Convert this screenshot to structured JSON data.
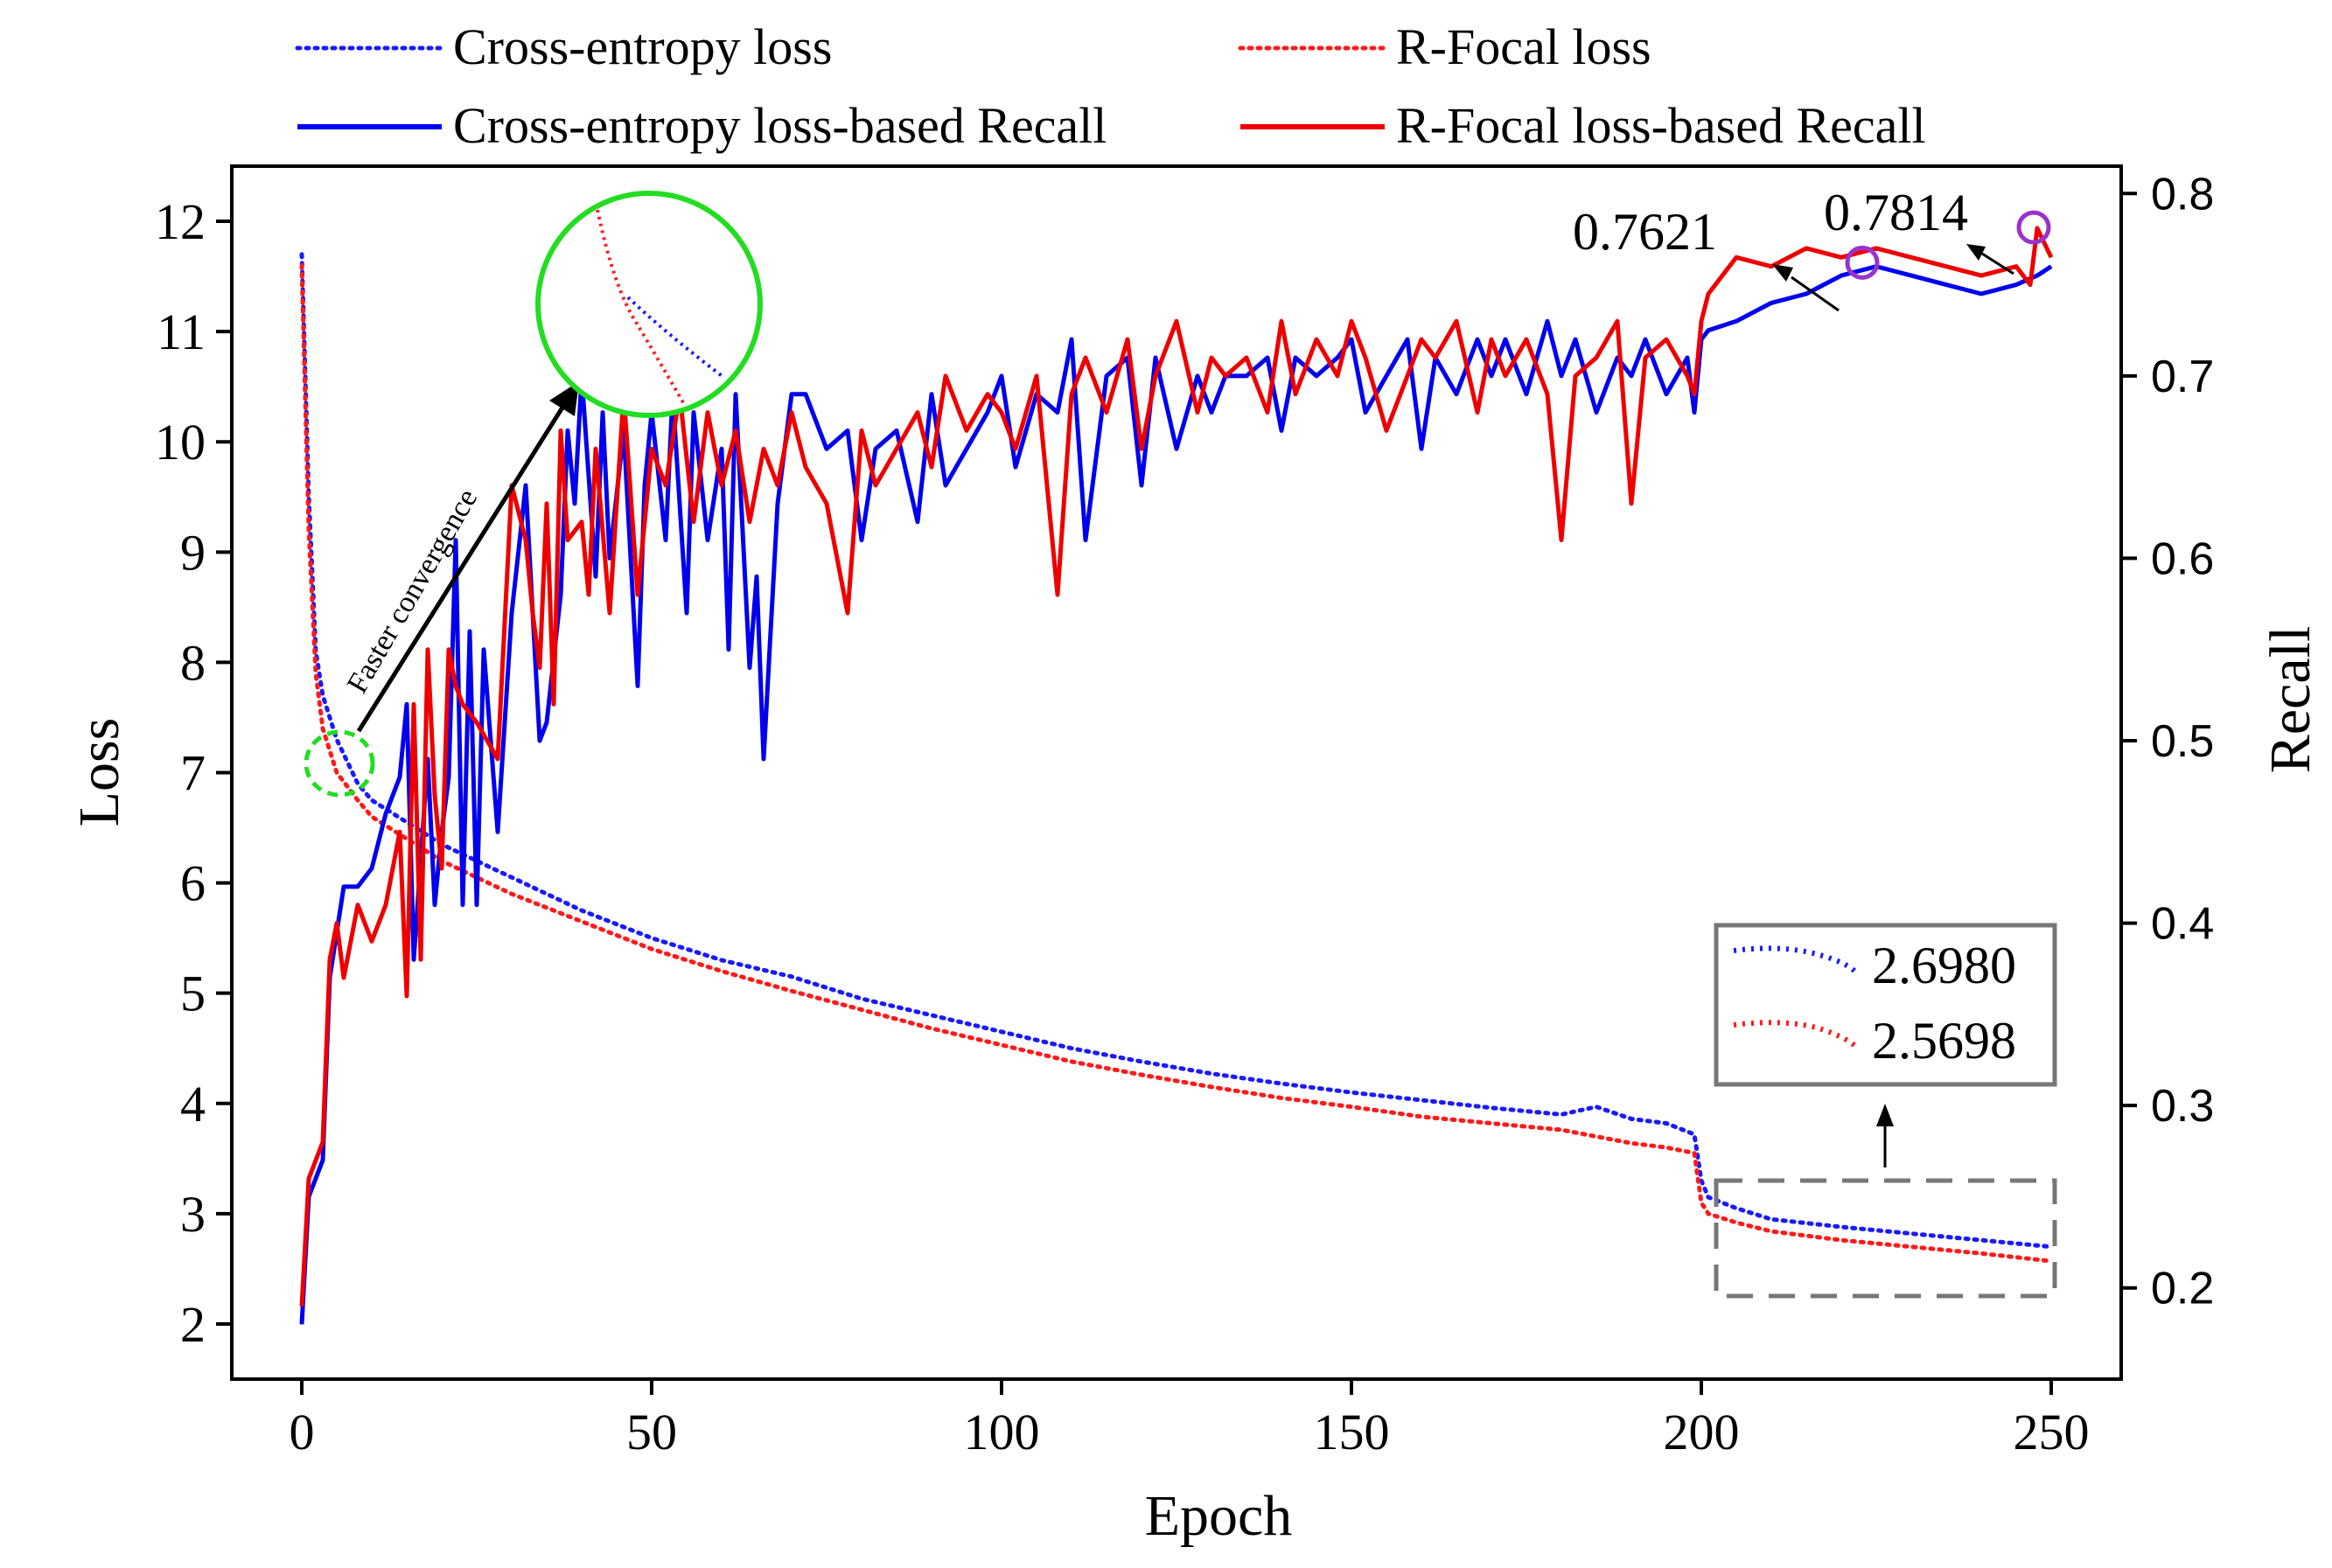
{
  "chart_data": {
    "type": "line",
    "title": "",
    "xlabel": "Epoch",
    "ylabel_left": "Loss",
    "ylabel_right": "Recall",
    "xlim": [
      -10,
      260
    ],
    "ylim_left": [
      1.5,
      12.5
    ],
    "ylim_right": [
      0.15,
      0.815
    ],
    "xticks": [
      0,
      50,
      100,
      150,
      200,
      250
    ],
    "yticks_left": [
      2,
      3,
      4,
      5,
      6,
      7,
      8,
      9,
      10,
      11,
      12
    ],
    "yticks_right": [
      0.2,
      0.3,
      0.4,
      0.5,
      0.6,
      0.7,
      0.8
    ],
    "xtick_labels": [
      "0",
      "50",
      "100",
      "150",
      "200",
      "250"
    ],
    "ytick_labels_left": [
      "2",
      "3",
      "4",
      "5",
      "6",
      "7",
      "8",
      "9",
      "10",
      "11",
      "12"
    ],
    "ytick_labels_right": [
      "0.2",
      "0.3",
      "0.4",
      "0.5",
      "0.6",
      "0.7",
      "0.8"
    ],
    "series": [
      {
        "name": "Cross-entropy loss",
        "axis": "left",
        "style": "dotted",
        "color": "#1a1aff",
        "x": [
          0,
          1,
          2,
          3,
          5,
          8,
          10,
          15,
          20,
          30,
          40,
          50,
          60,
          70,
          80,
          90,
          100,
          110,
          120,
          130,
          140,
          150,
          160,
          170,
          180,
          185,
          190,
          195,
          199,
          200,
          201,
          205,
          210,
          220,
          230,
          240,
          250
        ],
        "values": [
          11.7,
          9.5,
          8.1,
          7.7,
          7.3,
          6.9,
          6.75,
          6.55,
          6.35,
          6.05,
          5.75,
          5.5,
          5.3,
          5.15,
          4.95,
          4.8,
          4.65,
          4.5,
          4.38,
          4.27,
          4.18,
          4.1,
          4.03,
          3.96,
          3.9,
          3.97,
          3.86,
          3.82,
          3.72,
          3.3,
          3.15,
          3.05,
          2.95,
          2.88,
          2.82,
          2.76,
          2.7
        ]
      },
      {
        "name": "R-Focal loss",
        "axis": "left",
        "style": "dotted",
        "color": "#ff1a1a",
        "x": [
          0,
          1,
          2,
          3,
          5,
          8,
          10,
          15,
          20,
          30,
          40,
          50,
          60,
          70,
          80,
          90,
          100,
          110,
          120,
          130,
          140,
          150,
          160,
          170,
          180,
          185,
          190,
          195,
          199,
          200,
          201,
          205,
          210,
          220,
          230,
          240,
          250
        ],
        "values": [
          11.6,
          9.2,
          7.9,
          7.4,
          7.0,
          6.75,
          6.6,
          6.4,
          6.2,
          5.9,
          5.65,
          5.4,
          5.2,
          5.02,
          4.85,
          4.68,
          4.53,
          4.38,
          4.26,
          4.15,
          4.05,
          3.97,
          3.88,
          3.82,
          3.76,
          3.7,
          3.64,
          3.6,
          3.55,
          3.1,
          3.0,
          2.92,
          2.84,
          2.76,
          2.7,
          2.64,
          2.57
        ]
      },
      {
        "name": "Cross-entropy loss-based Recall",
        "axis": "right",
        "style": "solid",
        "color": "#0000ee",
        "x": [
          0,
          1,
          3,
          4,
          6,
          8,
          10,
          12,
          14,
          15,
          16,
          18,
          19,
          20,
          21,
          22,
          23,
          24,
          25,
          26,
          28,
          30,
          32,
          34,
          35,
          37,
          38,
          39,
          40,
          42,
          43,
          44,
          46,
          48,
          49,
          50,
          52,
          53,
          55,
          56,
          58,
          60,
          61,
          62,
          64,
          65,
          66,
          68,
          70,
          72,
          75,
          78,
          80,
          82,
          85,
          88,
          90,
          92,
          95,
          98,
          100,
          102,
          105,
          108,
          110,
          112,
          115,
          118,
          120,
          122,
          125,
          128,
          130,
          132,
          135,
          138,
          140,
          142,
          145,
          148,
          150,
          152,
          155,
          158,
          160,
          162,
          165,
          168,
          170,
          172,
          175,
          178,
          180,
          182,
          185,
          188,
          190,
          192,
          195,
          198,
          199,
          200,
          201,
          205,
          210,
          215,
          220,
          225,
          230,
          235,
          240,
          245,
          248,
          250
        ],
        "values": [
          0.18,
          0.25,
          0.27,
          0.37,
          0.42,
          0.42,
          0.43,
          0.46,
          0.48,
          0.52,
          0.38,
          0.49,
          0.41,
          0.45,
          0.48,
          0.61,
          0.41,
          0.56,
          0.41,
          0.55,
          0.45,
          0.57,
          0.64,
          0.5,
          0.51,
          0.58,
          0.67,
          0.63,
          0.7,
          0.59,
          0.68,
          0.6,
          0.67,
          0.53,
          0.64,
          0.68,
          0.61,
          0.69,
          0.57,
          0.68,
          0.61,
          0.66,
          0.55,
          0.69,
          0.54,
          0.59,
          0.49,
          0.63,
          0.69,
          0.69,
          0.66,
          0.67,
          0.61,
          0.66,
          0.67,
          0.62,
          0.69,
          0.64,
          0.66,
          0.68,
          0.7,
          0.65,
          0.69,
          0.68,
          0.72,
          0.61,
          0.7,
          0.71,
          0.64,
          0.71,
          0.66,
          0.7,
          0.68,
          0.7,
          0.7,
          0.71,
          0.67,
          0.71,
          0.7,
          0.71,
          0.72,
          0.68,
          0.7,
          0.72,
          0.66,
          0.71,
          0.69,
          0.72,
          0.7,
          0.72,
          0.69,
          0.73,
          0.7,
          0.72,
          0.68,
          0.71,
          0.7,
          0.72,
          0.69,
          0.71,
          0.68,
          0.72,
          0.725,
          0.73,
          0.74,
          0.745,
          0.755,
          0.76,
          0.755,
          0.75,
          0.745,
          0.75,
          0.755,
          0.76
        ]
      },
      {
        "name": "R-Focal loss-based Recall",
        "axis": "right",
        "style": "solid",
        "color": "#ee0000",
        "x": [
          0,
          1,
          3,
          4,
          5,
          6,
          8,
          10,
          12,
          14,
          15,
          16,
          17,
          18,
          19,
          20,
          21,
          22,
          23,
          25,
          28,
          30,
          32,
          33,
          34,
          35,
          36,
          37,
          38,
          40,
          41,
          42,
          44,
          46,
          48,
          50,
          52,
          54,
          56,
          58,
          60,
          62,
          64,
          66,
          68,
          70,
          72,
          75,
          78,
          80,
          82,
          85,
          88,
          90,
          92,
          95,
          98,
          100,
          102,
          105,
          108,
          110,
          112,
          115,
          118,
          120,
          122,
          125,
          128,
          130,
          132,
          135,
          138,
          140,
          142,
          145,
          148,
          150,
          152,
          155,
          158,
          160,
          162,
          165,
          168,
          170,
          172,
          175,
          178,
          180,
          182,
          185,
          188,
          190,
          192,
          195,
          198,
          199,
          200,
          201,
          205,
          210,
          215,
          220,
          225,
          230,
          235,
          240,
          245,
          247,
          248,
          250
        ],
        "values": [
          0.19,
          0.26,
          0.28,
          0.38,
          0.4,
          0.37,
          0.41,
          0.39,
          0.41,
          0.45,
          0.36,
          0.52,
          0.38,
          0.55,
          0.47,
          0.43,
          0.55,
          0.53,
          0.52,
          0.51,
          0.49,
          0.64,
          0.61,
          0.57,
          0.54,
          0.63,
          0.52,
          0.67,
          0.61,
          0.62,
          0.58,
          0.66,
          0.57,
          0.69,
          0.58,
          0.66,
          0.64,
          0.69,
          0.62,
          0.68,
          0.64,
          0.67,
          0.62,
          0.66,
          0.64,
          0.68,
          0.65,
          0.63,
          0.57,
          0.67,
          0.64,
          0.66,
          0.68,
          0.65,
          0.7,
          0.67,
          0.69,
          0.68,
          0.66,
          0.7,
          0.58,
          0.69,
          0.71,
          0.68,
          0.72,
          0.66,
          0.7,
          0.73,
          0.68,
          0.71,
          0.7,
          0.71,
          0.68,
          0.73,
          0.69,
          0.72,
          0.7,
          0.73,
          0.71,
          0.67,
          0.7,
          0.72,
          0.71,
          0.73,
          0.68,
          0.72,
          0.7,
          0.72,
          0.69,
          0.61,
          0.7,
          0.71,
          0.73,
          0.63,
          0.71,
          0.72,
          0.7,
          0.69,
          0.73,
          0.745,
          0.765,
          0.76,
          0.77,
          0.765,
          0.77,
          0.765,
          0.76,
          0.755,
          0.76,
          0.75,
          0.781,
          0.765
        ]
      }
    ],
    "legend": {
      "placement": "top",
      "entries": [
        {
          "label": "Cross-entropy loss",
          "style": "dotted",
          "color": "#1a1aff"
        },
        {
          "label": "R-Focal loss",
          "style": "dotted",
          "color": "#ff1a1a"
        },
        {
          "label": "Cross-entropy loss-based Recall",
          "style": "solid",
          "color": "#0000ee"
        },
        {
          "label": "R-Focal loss-based Recall",
          "style": "solid",
          "color": "#ee0000"
        }
      ]
    },
    "annotations": {
      "peak_ce": {
        "text": "0.7621",
        "x": 223,
        "y": 0.7621,
        "axis": "right"
      },
      "peak_rf": {
        "text": "0.7814",
        "x": 247.5,
        "y": 0.7814,
        "axis": "right"
      },
      "faster_convergence": {
        "text": "Faster convergence",
        "x": 5,
        "y": 7.1,
        "axis": "left"
      },
      "final_loss_inset": {
        "ce_value": "2.6980",
        "rf_value": "2.5698",
        "region_x": [
          201,
          251
        ],
        "region_y": [
          2.3,
          3.35
        ]
      }
    },
    "colors": {
      "zoom_circle": "#22dd22",
      "peak_marker": "#9933cc",
      "inset_border": "#777777"
    }
  }
}
